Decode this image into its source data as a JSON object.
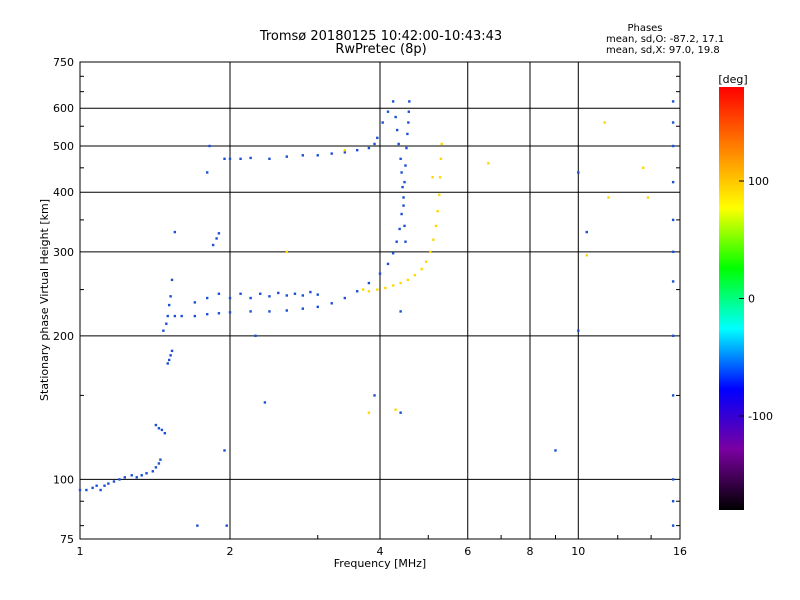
{
  "chart_data": {
    "type": "scatter",
    "title": "Tromsø 20180125 10:42:00-10:43:43",
    "subtitle": "RwPretec (8p)",
    "xlabel": "Frequency [MHz]",
    "ylabel": "Stationary phase Virtual Height [km]",
    "x_scale": "log",
    "y_scale": "log",
    "xlim": [
      1,
      16
    ],
    "ylim": [
      75,
      750
    ],
    "x_ticks": [
      1,
      2,
      4,
      6,
      8,
      10,
      16
    ],
    "y_ticks": [
      75,
      100,
      200,
      300,
      400,
      500,
      600,
      750
    ],
    "x_tick_labels": [
      "1",
      "2",
      "4",
      "6",
      "8",
      "10",
      "16"
    ],
    "y_tick_labels": [
      "75",
      "100",
      "200",
      "300",
      "400",
      "500",
      "600",
      "750"
    ],
    "grid": true,
    "stats": {
      "heading": "Phases",
      "line_o": "mean, sd,O: -87.2, 17.1",
      "line_x": "mean, sd,X:  97.0, 19.8"
    },
    "colorbar": {
      "label": "[deg]",
      "range": [
        -180,
        180
      ],
      "ticks": [
        100,
        0,
        -100
      ],
      "tick_labels": [
        "100",
        "0",
        "-100"
      ],
      "gradient": [
        "#000000",
        "#7a00a0",
        "#0000ff",
        "#00ffff",
        "#00ff00",
        "#ffff00",
        "#ff8000",
        "#ff0000"
      ]
    },
    "series": [
      {
        "name": "O",
        "color": "#1a4fd6",
        "points": [
          [
            1.0,
            95
          ],
          [
            1.03,
            95
          ],
          [
            1.06,
            96
          ],
          [
            1.08,
            97
          ],
          [
            1.1,
            95
          ],
          [
            1.12,
            97
          ],
          [
            1.14,
            98
          ],
          [
            1.17,
            99
          ],
          [
            1.2,
            100
          ],
          [
            1.23,
            101
          ],
          [
            1.27,
            102
          ],
          [
            1.3,
            101
          ],
          [
            1.33,
            102
          ],
          [
            1.36,
            103
          ],
          [
            1.4,
            104
          ],
          [
            1.42,
            106
          ],
          [
            1.44,
            108
          ],
          [
            1.45,
            110
          ],
          [
            1.42,
            130
          ],
          [
            1.44,
            128
          ],
          [
            1.46,
            127
          ],
          [
            1.48,
            125
          ],
          [
            1.5,
            175
          ],
          [
            1.51,
            178
          ],
          [
            1.52,
            182
          ],
          [
            1.53,
            186
          ],
          [
            1.47,
            205
          ],
          [
            1.49,
            212
          ],
          [
            1.5,
            220
          ],
          [
            1.51,
            232
          ],
          [
            1.52,
            242
          ],
          [
            1.53,
            262
          ],
          [
            1.55,
            330
          ],
          [
            1.55,
            220
          ],
          [
            1.6,
            220
          ],
          [
            1.7,
            220
          ],
          [
            1.8,
            222
          ],
          [
            1.9,
            223
          ],
          [
            2.0,
            224
          ],
          [
            2.2,
            225
          ],
          [
            2.4,
            225
          ],
          [
            2.6,
            226
          ],
          [
            2.8,
            228
          ],
          [
            3.0,
            230
          ],
          [
            3.2,
            234
          ],
          [
            3.4,
            240
          ],
          [
            3.6,
            248
          ],
          [
            3.8,
            258
          ],
          [
            4.0,
            270
          ],
          [
            4.15,
            283
          ],
          [
            4.25,
            298
          ],
          [
            4.32,
            315
          ],
          [
            4.38,
            335
          ],
          [
            4.42,
            360
          ],
          [
            4.46,
            390
          ],
          [
            4.48,
            420
          ],
          [
            4.5,
            455
          ],
          [
            4.52,
            495
          ],
          [
            4.54,
            530
          ],
          [
            4.56,
            560
          ],
          [
            4.57,
            590
          ],
          [
            4.58,
            620
          ],
          [
            1.7,
            235
          ],
          [
            1.8,
            240
          ],
          [
            1.9,
            245
          ],
          [
            2.0,
            240
          ],
          [
            2.1,
            245
          ],
          [
            2.2,
            240
          ],
          [
            2.3,
            245
          ],
          [
            2.4,
            242
          ],
          [
            2.5,
            246
          ],
          [
            2.6,
            243
          ],
          [
            2.7,
            245
          ],
          [
            2.8,
            243
          ],
          [
            2.9,
            247
          ],
          [
            3.0,
            244
          ],
          [
            2.0,
            470
          ],
          [
            2.1,
            470
          ],
          [
            2.2,
            472
          ],
          [
            2.4,
            470
          ],
          [
            2.6,
            475
          ],
          [
            2.8,
            478
          ],
          [
            3.0,
            478
          ],
          [
            3.2,
            482
          ],
          [
            3.4,
            485
          ],
          [
            3.6,
            490
          ],
          [
            3.8,
            495
          ],
          [
            3.9,
            505
          ],
          [
            3.95,
            520
          ],
          [
            4.05,
            560
          ],
          [
            4.15,
            590
          ],
          [
            4.25,
            620
          ],
          [
            4.3,
            575
          ],
          [
            4.33,
            540
          ],
          [
            4.36,
            505
          ],
          [
            4.4,
            470
          ],
          [
            4.42,
            440
          ],
          [
            4.44,
            410
          ],
          [
            4.46,
            375
          ],
          [
            4.48,
            340
          ],
          [
            4.5,
            315
          ],
          [
            1.85,
            310
          ],
          [
            1.88,
            320
          ],
          [
            1.9,
            328
          ],
          [
            1.82,
            500
          ],
          [
            1.95,
            470
          ],
          [
            1.8,
            440
          ],
          [
            2.25,
            200
          ],
          [
            1.95,
            115
          ],
          [
            2.35,
            145
          ],
          [
            1.97,
            80
          ],
          [
            1.72,
            80
          ],
          [
            3.9,
            150
          ],
          [
            4.4,
            138
          ],
          [
            4.4,
            225
          ],
          [
            9.0,
            115
          ],
          [
            10.0,
            205
          ],
          [
            10.4,
            330
          ],
          [
            10.0,
            440
          ],
          [
            15.5,
            100
          ],
          [
            15.5,
            150
          ],
          [
            15.5,
            200
          ],
          [
            15.5,
            260
          ],
          [
            15.5,
            300
          ],
          [
            15.5,
            350
          ],
          [
            15.5,
            420
          ],
          [
            15.5,
            500
          ],
          [
            15.5,
            560
          ],
          [
            15.5,
            620
          ],
          [
            15.5,
            90
          ],
          [
            15.5,
            80
          ]
        ]
      },
      {
        "name": "X",
        "color": "#ffd800",
        "points": [
          [
            3.8,
            248
          ],
          [
            3.95,
            250
          ],
          [
            4.1,
            252
          ],
          [
            4.25,
            255
          ],
          [
            4.4,
            258
          ],
          [
            4.55,
            262
          ],
          [
            4.7,
            268
          ],
          [
            4.85,
            276
          ],
          [
            4.95,
            286
          ],
          [
            5.05,
            300
          ],
          [
            5.12,
            318
          ],
          [
            5.18,
            340
          ],
          [
            5.22,
            365
          ],
          [
            5.26,
            395
          ],
          [
            5.28,
            430
          ],
          [
            5.3,
            470
          ],
          [
            5.32,
            505
          ],
          [
            3.4,
            490
          ],
          [
            3.7,
            250
          ],
          [
            5.1,
            430
          ],
          [
            6.6,
            460
          ],
          [
            11.3,
            560
          ],
          [
            11.5,
            390
          ],
          [
            13.5,
            450
          ],
          [
            13.8,
            390
          ],
          [
            10.4,
            295
          ],
          [
            3.8,
            138
          ],
          [
            4.3,
            140
          ],
          [
            2.6,
            300
          ]
        ]
      }
    ]
  }
}
